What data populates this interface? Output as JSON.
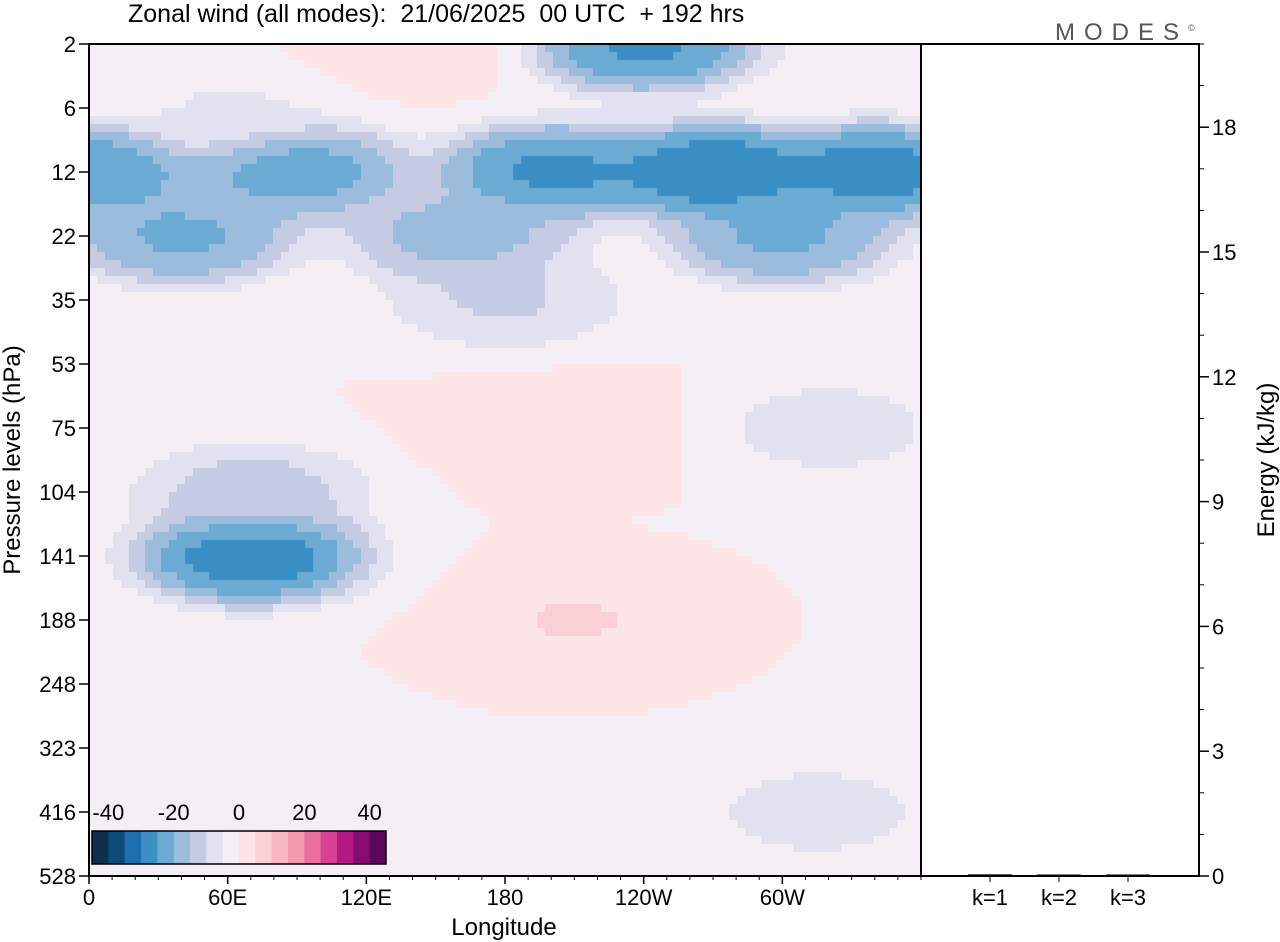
{
  "title": "Zonal wind (all modes):  21/06/2025  00 UTC  + 192 hrs",
  "brand": "MODES",
  "brand_mark": "©",
  "colors": {
    "neg": [
      "#0e2f4e",
      "#0d4a7c",
      "#1d70ad",
      "#3a8fc5",
      "#6aaad3",
      "#9bbcdc",
      "#c4cbe3",
      "#e1e1ef",
      "#f4eef5"
    ],
    "pos": [
      "#fde4e6",
      "#fbcfd6",
      "#f8b6c4",
      "#f49ab0",
      "#ea6fa0",
      "#d84094",
      "#b31a84",
      "#860c74",
      "#5a075c"
    ],
    "frame": "#000000",
    "background": "#ffffff"
  },
  "chart_data": [
    {
      "type": "heatmap",
      "title": "Zonal wind (all modes):  21/06/2025  00 UTC  + 192 hrs",
      "xlabel": "Longitude",
      "ylabel": "Pressure levels (hPa)",
      "x_ticks": [
        "0",
        "60E",
        "120E",
        "180",
        "120W",
        "60W"
      ],
      "x_tick_values": [
        0,
        60,
        120,
        180,
        240,
        300
      ],
      "xlim": [
        0,
        360
      ],
      "y_ticks": [
        "2",
        "6",
        "12",
        "22",
        "35",
        "53",
        "75",
        "104",
        "141",
        "188",
        "248",
        "323",
        "416",
        "528"
      ],
      "y_scale": "pressure levels (top to bottom)",
      "colorbar": {
        "ticks": [
          "-40",
          "-20",
          "0",
          "20",
          "40"
        ],
        "tick_values": [
          -40,
          -20,
          0,
          20,
          40
        ],
        "range": [
          -45,
          45
        ],
        "step": 5,
        "placement": "bottom-left inset"
      },
      "features": [
        {
          "lon": 0,
          "level": 12,
          "value": -28
        },
        {
          "lon": 90,
          "level": 12,
          "value": -26
        },
        {
          "lon": 200,
          "level": 12,
          "value": -30
        },
        {
          "lon": 270,
          "level": 12,
          "value": -34
        },
        {
          "lon": 340,
          "level": 12,
          "value": -32
        },
        {
          "lon": 40,
          "level": 22,
          "value": -24
        },
        {
          "lon": 160,
          "level": 22,
          "value": -20
        },
        {
          "lon": 300,
          "level": 22,
          "value": -24
        },
        {
          "lon": 240,
          "level": 2,
          "value": -30
        },
        {
          "lon": 140,
          "level": 2,
          "value": 3
        },
        {
          "lon": 60,
          "level": 6,
          "value": -6
        },
        {
          "lon": 180,
          "level": 35,
          "value": -12
        },
        {
          "lon": 70,
          "level": 141,
          "value": -33
        },
        {
          "lon": 70,
          "level": 104,
          "value": -14
        },
        {
          "lon": 200,
          "level": 75,
          "value": 3
        },
        {
          "lon": 210,
          "level": 188,
          "value": 6
        },
        {
          "lon": 320,
          "level": 75,
          "value": -8
        },
        {
          "lon": 150,
          "level": 416,
          "value": -3
        },
        {
          "lon": 315,
          "level": 416,
          "value": -8
        }
      ]
    },
    {
      "type": "bar",
      "ylabel": "Energy (kJ/kg)",
      "categories": [
        "k=1",
        "k=2",
        "k=3"
      ],
      "values": [
        0.04,
        0.02,
        0.01
      ],
      "ylim": [
        0,
        20
      ],
      "y_ticks": [
        "0",
        "3",
        "6",
        "9",
        "12",
        "15",
        "18"
      ],
      "y_tick_values": [
        0,
        3,
        6,
        9,
        12,
        15,
        18
      ]
    }
  ]
}
